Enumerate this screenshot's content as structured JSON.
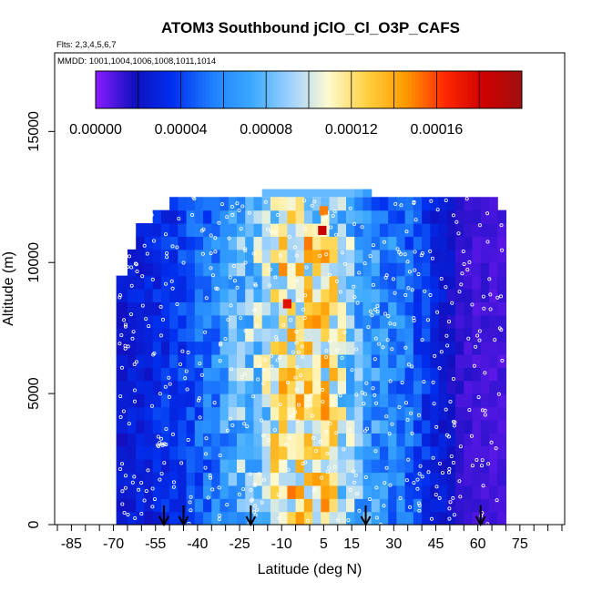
{
  "chart_data": {
    "type": "heatmap",
    "title": "ATOM3 Southbound jClO_Cl_O3P_CAFS",
    "flights_label": "Flts: 2,3,4,5,6,7",
    "dates_label": "MMDD: 1001,1004,1006,1008,1011,1014",
    "xlabel": "Latitude (deg N)",
    "ylabel": "Altitude (m)",
    "xlim": [
      -90,
      90
    ],
    "ylim": [
      0,
      18000
    ],
    "xticks": [
      -85,
      -70,
      -55,
      -40,
      -25,
      -10,
      5,
      15,
      30,
      45,
      60,
      75
    ],
    "xticks_minor": [
      -90,
      -80,
      -75,
      -65,
      -60,
      -50,
      -45,
      -35,
      -30,
      -20,
      -15,
      -5,
      0,
      10,
      20,
      25,
      35,
      40,
      50,
      55,
      65,
      70,
      80,
      85,
      90
    ],
    "yticks": [
      0,
      5000,
      10000,
      15000
    ],
    "colorbar": {
      "min": 0,
      "max": 0.0002,
      "tick_values": [
        0,
        4e-05,
        8e-05,
        0.00012,
        0.00016
      ],
      "tick_labels": [
        "0.00000",
        "0.00004",
        "0.00008",
        "0.00012",
        "0.00016"
      ],
      "colors": [
        "#8b1cff",
        "#1010c0",
        "#0030f0",
        "#1f7fff",
        "#3aa8ff",
        "#9bd0ff",
        "#fffad0",
        "#ffd040",
        "#ff9a00",
        "#ff2a00",
        "#d00000",
        "#a01010"
      ]
    },
    "lat_bins": [
      -69,
      -65,
      -62,
      -59,
      -56,
      -53,
      -50,
      -47,
      -44,
      -41,
      -38,
      -35,
      -32,
      -29,
      -26,
      -23,
      -20,
      -17,
      -14,
      -11,
      -8,
      -5,
      -2,
      1,
      4,
      7,
      10,
      13,
      16,
      19,
      22,
      25,
      28,
      31,
      34,
      37,
      40,
      43,
      46,
      49,
      52,
      55,
      58,
      61,
      64,
      67,
      70
    ],
    "profile": [
      0.022,
      0.026,
      0.028,
      0.028,
      0.032,
      0.034,
      0.036,
      0.038,
      0.043,
      0.047,
      0.052,
      0.058,
      0.065,
      0.073,
      0.08,
      0.086,
      0.09,
      0.096,
      0.106,
      0.116,
      0.12,
      0.118,
      0.116,
      0.117,
      0.115,
      0.108,
      0.096,
      0.086,
      0.076,
      0.07,
      0.066,
      0.062,
      0.059,
      0.055,
      0.05,
      0.044,
      0.036,
      0.028,
      0.024,
      0.02,
      0.013,
      0.012,
      0.011,
      0.011,
      0.01,
      0.01
    ],
    "hotspots": [
      {
        "lat": -8,
        "alt": 8250,
        "value": 0.000175
      },
      {
        "lat": 4.5,
        "alt": 11050,
        "value": 0.000185
      },
      {
        "lat": 5,
        "alt": 11800,
        "value": 0.00015
      }
    ],
    "flight_arrows_lat": [
      -52,
      -45,
      -21,
      20,
      61
    ]
  }
}
